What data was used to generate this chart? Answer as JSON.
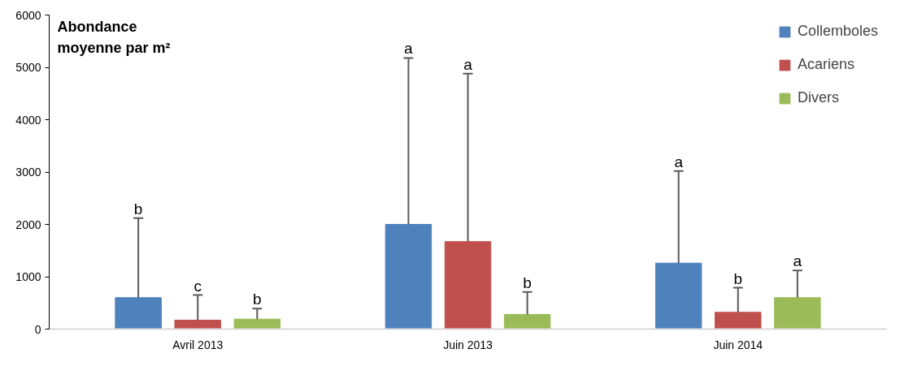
{
  "chart_data": {
    "type": "bar",
    "ylabel": "Abondance\nmoyenne par m²",
    "categories": [
      "Avril 2013",
      "Juin 2013",
      "Juin 2014"
    ],
    "series": [
      {
        "name": "Collemboles",
        "color": "#4f81bd",
        "values": [
          600,
          2000,
          1260
        ],
        "errors": [
          [
            600,
            2120
          ],
          [
            2000,
            5180
          ],
          [
            1260,
            3020
          ]
        ]
      },
      {
        "name": "Acariens",
        "color": "#c0504d",
        "values": [
          170,
          1670,
          320
        ],
        "errors": [
          [
            170,
            650
          ],
          [
            1670,
            4880
          ],
          [
            320,
            790
          ]
        ]
      },
      {
        "name": "Divers",
        "color": "#9bbb59",
        "values": [
          190,
          280,
          600
        ],
        "errors": [
          [
            190,
            390
          ],
          [
            280,
            710
          ],
          [
            600,
            1120
          ]
        ]
      }
    ],
    "annotations": [
      "b",
      "c",
      "b",
      "a",
      "a",
      "b",
      "a",
      "b",
      "a"
    ],
    "ylim": [
      0,
      6000
    ],
    "yticks": [
      0,
      1000,
      2000,
      3000,
      4000,
      5000,
      6000
    ],
    "grid": false,
    "legend": "top right"
  }
}
